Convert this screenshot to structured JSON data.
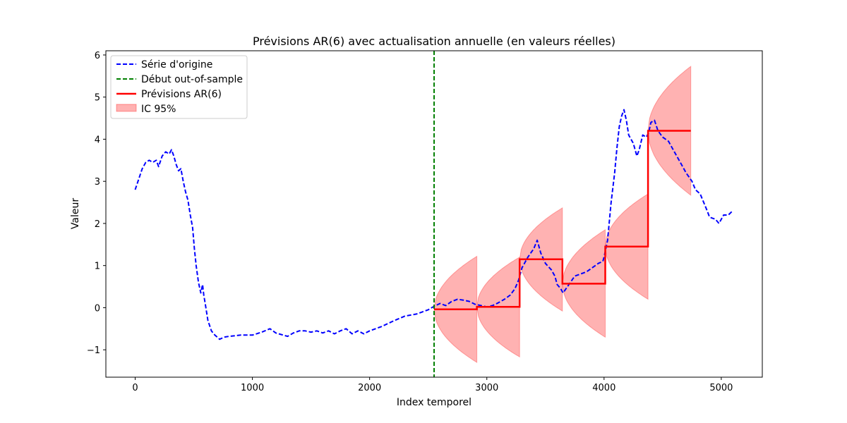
{
  "chart_data": {
    "type": "line",
    "title": "Prévisions AR(6) avec actualisation annuelle (en valeurs réelles)",
    "xlabel": "Index temporel",
    "ylabel": "Valeur",
    "xlim": [
      -250,
      5350
    ],
    "ylim": [
      -1.65,
      6.1
    ],
    "xticks": [
      {
        "value": 0,
        "label": "0"
      },
      {
        "value": 1000,
        "label": "1000"
      },
      {
        "value": 2000,
        "label": "2000"
      },
      {
        "value": 3000,
        "label": "3000"
      },
      {
        "value": 4000,
        "label": "4000"
      },
      {
        "value": 5000,
        "label": "5000"
      }
    ],
    "yticks": [
      {
        "value": -1,
        "label": "−1"
      },
      {
        "value": 0,
        "label": "0"
      },
      {
        "value": 1,
        "label": "1"
      },
      {
        "value": 2,
        "label": "2"
      },
      {
        "value": 3,
        "label": "3"
      },
      {
        "value": 4,
        "label": "4"
      },
      {
        "value": 5,
        "label": "5"
      },
      {
        "value": 6,
        "label": "6"
      }
    ],
    "grid": false,
    "legend_position": "top-left",
    "legend": [
      {
        "label": "Série d'origine",
        "style": "dashed-line",
        "color": "#0000ff"
      },
      {
        "label": "Début out-of-sample",
        "style": "dashed-line",
        "color": "#008000"
      },
      {
        "label": "Prévisions AR(6)",
        "style": "solid-line",
        "color": "#ff0000"
      },
      {
        "label": "IC 95%",
        "style": "patch",
        "color": "#ff0000"
      }
    ],
    "original_series": {
      "name": "Série d'origine",
      "color": "#0000ff",
      "points": [
        [
          0,
          2.8
        ],
        [
          30,
          3.05
        ],
        [
          60,
          3.3
        ],
        [
          90,
          3.45
        ],
        [
          120,
          3.5
        ],
        [
          150,
          3.45
        ],
        [
          180,
          3.5
        ],
        [
          200,
          3.35
        ],
        [
          230,
          3.6
        ],
        [
          260,
          3.7
        ],
        [
          290,
          3.65
        ],
        [
          310,
          3.75
        ],
        [
          330,
          3.6
        ],
        [
          350,
          3.4
        ],
        [
          370,
          3.25
        ],
        [
          390,
          3.3
        ],
        [
          410,
          3.0
        ],
        [
          430,
          2.75
        ],
        [
          450,
          2.55
        ],
        [
          470,
          2.2
        ],
        [
          490,
          1.9
        ],
        [
          505,
          1.4
        ],
        [
          520,
          1.0
        ],
        [
          540,
          0.6
        ],
        [
          560,
          0.35
        ],
        [
          575,
          0.55
        ],
        [
          585,
          0.3
        ],
        [
          600,
          0.05
        ],
        [
          620,
          -0.3
        ],
        [
          650,
          -0.55
        ],
        [
          680,
          -0.65
        ],
        [
          720,
          -0.75
        ],
        [
          760,
          -0.7
        ],
        [
          800,
          -0.68
        ],
        [
          900,
          -0.65
        ],
        [
          1000,
          -0.65
        ],
        [
          1080,
          -0.58
        ],
        [
          1150,
          -0.5
        ],
        [
          1200,
          -0.6
        ],
        [
          1300,
          -0.68
        ],
        [
          1350,
          -0.6
        ],
        [
          1400,
          -0.55
        ],
        [
          1450,
          -0.55
        ],
        [
          1500,
          -0.58
        ],
        [
          1550,
          -0.55
        ],
        [
          1600,
          -0.6
        ],
        [
          1650,
          -0.55
        ],
        [
          1700,
          -0.62
        ],
        [
          1750,
          -0.55
        ],
        [
          1800,
          -0.5
        ],
        [
          1850,
          -0.62
        ],
        [
          1900,
          -0.55
        ],
        [
          1950,
          -0.62
        ],
        [
          2000,
          -0.55
        ],
        [
          2100,
          -0.45
        ],
        [
          2200,
          -0.32
        ],
        [
          2300,
          -0.2
        ],
        [
          2400,
          -0.15
        ],
        [
          2450,
          -0.1
        ],
        [
          2500,
          -0.05
        ],
        [
          2530,
          0.0
        ],
        [
          2550,
          0.03
        ],
        [
          2600,
          0.1
        ],
        [
          2650,
          0.05
        ],
        [
          2700,
          0.15
        ],
        [
          2750,
          0.2
        ],
        [
          2800,
          0.18
        ],
        [
          2850,
          0.15
        ],
        [
          2900,
          0.08
        ],
        [
          2950,
          0.05
        ],
        [
          3000,
          0.02
        ],
        [
          3050,
          0.05
        ],
        [
          3100,
          0.12
        ],
        [
          3150,
          0.2
        ],
        [
          3200,
          0.3
        ],
        [
          3240,
          0.45
        ],
        [
          3270,
          0.65
        ],
        [
          3300,
          0.95
        ],
        [
          3350,
          1.2
        ],
        [
          3400,
          1.4
        ],
        [
          3430,
          1.6
        ],
        [
          3460,
          1.3
        ],
        [
          3500,
          1.05
        ],
        [
          3550,
          0.9
        ],
        [
          3580,
          0.75
        ],
        [
          3600,
          0.55
        ],
        [
          3630,
          0.45
        ],
        [
          3650,
          0.35
        ],
        [
          3700,
          0.55
        ],
        [
          3750,
          0.75
        ],
        [
          3800,
          0.8
        ],
        [
          3850,
          0.85
        ],
        [
          3900,
          0.95
        ],
        [
          3950,
          1.05
        ],
        [
          3990,
          1.1
        ],
        [
          4000,
          1.2
        ],
        [
          4030,
          1.6
        ],
        [
          4060,
          2.5
        ],
        [
          4090,
          3.2
        ],
        [
          4110,
          3.8
        ],
        [
          4130,
          4.3
        ],
        [
          4150,
          4.55
        ],
        [
          4170,
          4.7
        ],
        [
          4190,
          4.45
        ],
        [
          4210,
          4.1
        ],
        [
          4250,
          3.9
        ],
        [
          4280,
          3.6
        ],
        [
          4300,
          3.75
        ],
        [
          4330,
          4.1
        ],
        [
          4360,
          4.05
        ],
        [
          4380,
          4.15
        ],
        [
          4400,
          4.4
        ],
        [
          4430,
          4.45
        ],
        [
          4460,
          4.2
        ],
        [
          4500,
          4.05
        ],
        [
          4550,
          3.95
        ],
        [
          4600,
          3.7
        ],
        [
          4650,
          3.45
        ],
        [
          4700,
          3.2
        ],
        [
          4750,
          3.0
        ],
        [
          4780,
          2.8
        ],
        [
          4820,
          2.7
        ],
        [
          4850,
          2.5
        ],
        [
          4880,
          2.3
        ],
        [
          4900,
          2.15
        ],
        [
          4950,
          2.1
        ],
        [
          4980,
          2.0
        ],
        [
          5020,
          2.2
        ],
        [
          5060,
          2.2
        ],
        [
          5090,
          2.28
        ]
      ]
    },
    "out_of_sample_start": {
      "name": "Début out-of-sample",
      "x": 2550,
      "color": "#008000"
    },
    "forecasts": {
      "name": "Prévisions AR(6)",
      "color": "#ff0000",
      "ci_label": "IC 95%",
      "segments": [
        {
          "x_start": 2550,
          "x_end": 2915,
          "mean": -0.04,
          "ci_upper_end": 1.22,
          "ci_lower_end": -1.3
        },
        {
          "x_start": 2915,
          "x_end": 3280,
          "mean": 0.02,
          "ci_upper_end": 1.2,
          "ci_lower_end": -1.17
        },
        {
          "x_start": 3280,
          "x_end": 3645,
          "mean": 1.15,
          "ci_upper_end": 2.37,
          "ci_lower_end": -0.08
        },
        {
          "x_start": 3645,
          "x_end": 4010,
          "mean": 0.57,
          "ci_upper_end": 1.85,
          "ci_lower_end": -0.7
        },
        {
          "x_start": 4010,
          "x_end": 4375,
          "mean": 1.45,
          "ci_upper_end": 2.7,
          "ci_lower_end": 0.2
        },
        {
          "x_start": 4375,
          "x_end": 4740,
          "mean": 4.2,
          "ci_upper_end": 5.73,
          "ci_lower_end": 2.67
        }
      ]
    }
  }
}
